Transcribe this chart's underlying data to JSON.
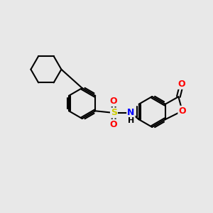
{
  "bg_color": "#e8e8e8",
  "bond_color": "#000000",
  "bond_width": 1.5,
  "atom_colors": {
    "O": "#ff0000",
    "N": "#0000ff",
    "S": "#cccc00",
    "H": "#000000"
  },
  "font_size": 9,
  "figsize": [
    3.0,
    3.0
  ],
  "dpi": 100
}
